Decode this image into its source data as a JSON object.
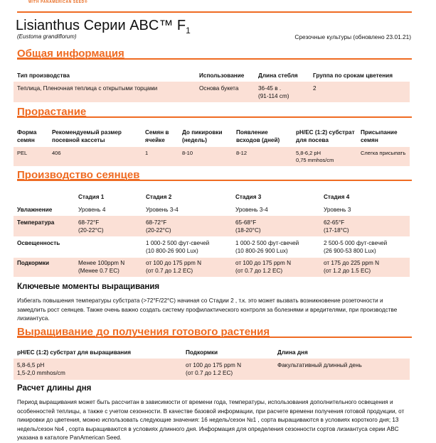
{
  "header": {
    "logo_text": "WITH PANAMERICAN SEED®",
    "title": "Lisianthus Серии ABC™ F",
    "title_sub": "1",
    "latin": "(Eustoma grandiflorum)",
    "crop_info": "Срезочные культуры (обновлено 23.01.21)",
    "accent_color": "#ef6b22",
    "row_color": "#fbe0d6"
  },
  "general": {
    "heading": "Общая информация",
    "headers": [
      "Тип производства",
      "Использование",
      "Длина стебля",
      "Группа по срокам цветения"
    ],
    "values": [
      "Теплица, Пленочная теплица с открытыми торцами",
      "Основа букета",
      "36-45 в .",
      "(91-114 cm)",
      "2"
    ]
  },
  "germination": {
    "heading": "Прорастание",
    "headers": [
      [
        "Форма",
        "семян"
      ],
      [
        "Рекомендуемый размер",
        "посевной кассеты"
      ],
      [
        "Семян в",
        "ячейке"
      ],
      [
        "До пикировки",
        "(недель)"
      ],
      [
        "Появление",
        "всходов (дней)"
      ],
      [
        "pH/EC (1:2) субстрат",
        "для посева"
      ],
      [
        "Присыпание",
        "семян"
      ]
    ],
    "values": [
      "PEL",
      "406",
      "1",
      "8-10",
      "8-12",
      "5,8-6,2 pH",
      "0,75 mmhos/cm",
      "Слегка присыпать"
    ]
  },
  "seedlings": {
    "heading": "Производство сеянцев",
    "stages": [
      "Стадия 1",
      "Стадия 2",
      "Стадия 3",
      "Стадия 4"
    ],
    "rows": [
      {
        "label": "Увлажнение",
        "cells": [
          [
            "Уровень 4"
          ],
          [
            "Уровень 3-4"
          ],
          [
            "Уровень 3-4"
          ],
          [
            "Уровень 3"
          ]
        ]
      },
      {
        "label": "Температура",
        "cells": [
          [
            "68-72°F",
            "(20-22°C)"
          ],
          [
            "68-72°F",
            "(20-22°C)"
          ],
          [
            "65-68°F",
            "(18-20°C)"
          ],
          [
            "62-65°F",
            "(17-18°C)"
          ]
        ]
      },
      {
        "label": "Освещенность",
        "cells": [
          [
            "",
            ""
          ],
          [
            "1 000-2 500 фут-свечей",
            "(10 800-26 900 Lux)"
          ],
          [
            "1 000-2 500 фут-свечей",
            "(10 800-26 900 Lux)"
          ],
          [
            "2 500-5 000 фут-свечей",
            "(26 900-53 800 Lux)"
          ]
        ]
      },
      {
        "label": "Подкормки",
        "cells": [
          [
            "Менее 100ppm N",
            "(Менее 0.7 EC)"
          ],
          [
            "от 100 до 175 ppm N",
            "(от 0.7 до 1.2 EC)"
          ],
          [
            "от 100 до 175 ppm N",
            "(от 0.7 до 1.2 EC)"
          ],
          [
            "от 175 до 225 ppm N",
            "(от 1.2 до 1.5 EC)"
          ]
        ]
      }
    ]
  },
  "key_points": {
    "heading": "Ключевые моменты выращивания",
    "text": "Избегать повышения температуры субстрата (>72°F/22°C) начиная со Стадии 2 , т.к. это может вызвать возникновение розеточности и замедлить рост сеянцев. Также очень важно создать систему профилактического контроля за болезнями и вредителями, при производстве лизиантуса."
  },
  "finishing": {
    "heading": "Выращивание до получения готового растения",
    "headers": [
      "pH/EC (1:2) субстрат для выращивания",
      "Подкормки",
      "Длина дня"
    ],
    "values": [
      "5,8-6,5 pH",
      "1,5-2,0 mmhos/cm",
      "от 100 до 175 ppm N",
      "(от 0.7 до 1.2 EC)",
      "Факультативный длинный день"
    ]
  },
  "daylength": {
    "heading": "Расчет длины дня",
    "text": "Период выращивания может быть рассчитан в зависимости от времени года, температуры, использования дополнительного освещения и особенностей теплицы, а также с учетом сезонности. В качестве базовой информации, при расчете времени получения готовой продукции, от пикировки до цветения, можно использовать следующие значения: 16 недель/сезон №1 , сорта выращиваются в условиях короткого дня; 13 недель/сезон №4 , сорта выращиваются в условиях длинного дня. Информация для определения сезонности сортов лизиантуса серии ABC указана в каталоге PanAmerican Seed."
  }
}
